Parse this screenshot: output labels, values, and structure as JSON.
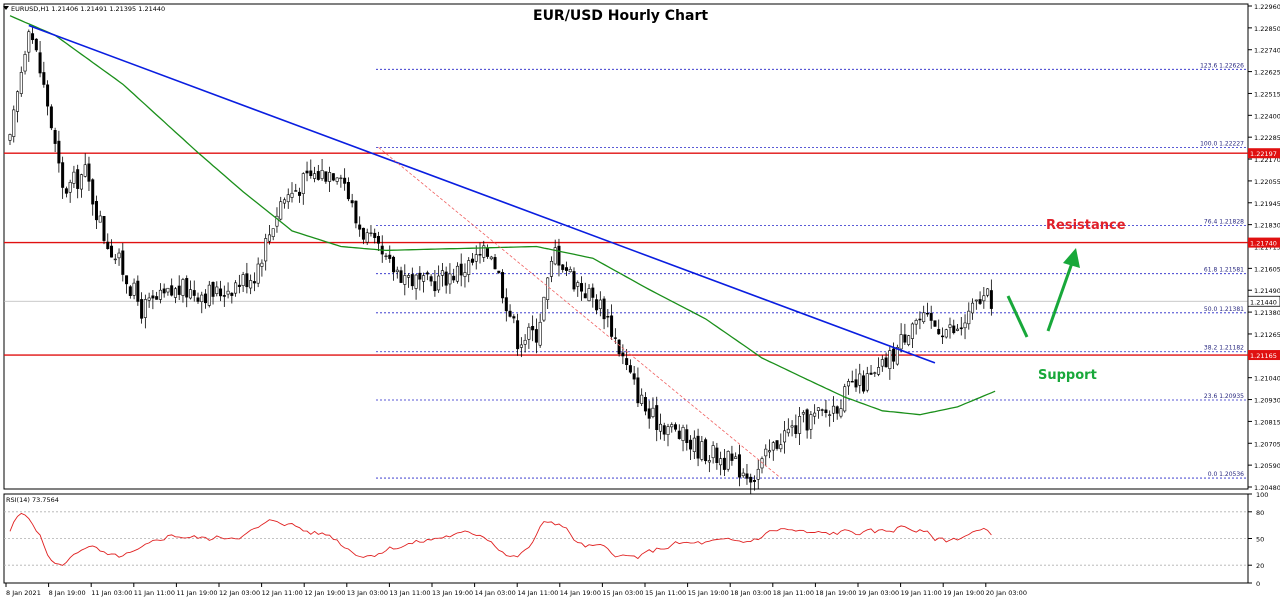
{
  "title": "EUR/USD Hourly Chart",
  "info": {
    "symbol_line": "EURUSD,H1  1.21406 1.21491 1.21395 1.21440",
    "rsi_line": "RSI(14) 73.7564"
  },
  "annotations": {
    "resistance": "Resistance",
    "support": "Support"
  },
  "colors": {
    "candle_bull_fill": "#ffffff",
    "candle_outline": "#000000",
    "moving_average": "#1a8f1a",
    "trendline": "#0a1ee0",
    "horizontal_lines": "#e01010",
    "fib_lines": "#2323c8",
    "fib_diagonal": "#f06060",
    "arrows": "#18a83a",
    "resistance_text": "#e0202a",
    "support_text": "#18a83a",
    "rsi_line": "#e02020",
    "rsi_levels": "#b0b0b0"
  },
  "price_axis_labels": [
    "1.22960",
    "1.22850",
    "1.22740",
    "1.22625",
    "1.22515",
    "1.22400",
    "1.22285",
    "1.22170",
    "1.22055",
    "1.21945",
    "1.21830",
    "1.21715",
    "1.21605",
    "1.21490",
    "1.21380",
    "1.21265",
    "1.21150",
    "1.21040",
    "1.20930",
    "1.20815",
    "1.20705",
    "1.20590",
    "1.20480"
  ],
  "price_tags": {
    "resistance_1": "1.22197",
    "resistance_2": "1.21740",
    "current": "1.21440",
    "support": "1.21165"
  },
  "fib_levels": [
    {
      "label": "123.6 1.22626",
      "price": 1.22626
    },
    {
      "label": "100.0 1.22227",
      "price": 1.22227
    },
    {
      "label": "76.4 1.21828",
      "price": 1.21828
    },
    {
      "label": "61.8 1.21581",
      "price": 1.21581
    },
    {
      "label": "50.0 1.21381",
      "price": 1.21381
    },
    {
      "label": "38.2 1.21182",
      "price": 1.21182
    },
    {
      "label": "23.6 1.20935",
      "price": 1.20935
    },
    {
      "label": "0.0 1.20536",
      "price": 1.20536
    }
  ],
  "rsi_axis_labels": [
    "100",
    "80",
    "50",
    "20",
    "0"
  ],
  "time_axis_labels": [
    "8 Jan 2021",
    "8 Jan 19:00",
    "11 Jan 03:00",
    "11 Jan 11:00",
    "11 Jan 19:00",
    "12 Jan 03:00",
    "12 Jan 11:00",
    "12 Jan 19:00",
    "13 Jan 03:00",
    "13 Jan 11:00",
    "13 Jan 19:00",
    "14 Jan 03:00",
    "14 Jan 11:00",
    "14 Jan 19:00",
    "15 Jan 03:00",
    "15 Jan 11:00",
    "15 Jan 19:00",
    "18 Jan 03:00",
    "18 Jan 11:00",
    "18 Jan 19:00",
    "19 Jan 03:00",
    "19 Jan 11:00",
    "19 Jan 19:00",
    "20 Jan 03:00"
  ],
  "chart_data": {
    "type": "candlestick",
    "title": "EUR/USD Hourly Chart",
    "y_range": [
      1.2048,
      1.2296
    ],
    "horizontal_levels": [
      1.22197,
      1.2174,
      1.21165
    ],
    "last_price": 1.2144,
    "rsi": {
      "label": "RSI(14)",
      "last_value": 73.7564,
      "levels": [
        80,
        50,
        20
      ],
      "range": [
        0,
        100
      ]
    },
    "close_path_keypoints": [
      [
        0,
        1.2225
      ],
      [
        5,
        1.2287
      ],
      [
        10,
        1.2245
      ],
      [
        14,
        1.22
      ],
      [
        20,
        1.221
      ],
      [
        25,
        1.2178
      ],
      [
        30,
        1.216
      ],
      [
        35,
        1.214
      ],
      [
        45,
        1.215
      ],
      [
        55,
        1.2148
      ],
      [
        65,
        1.2158
      ],
      [
        72,
        1.2195
      ],
      [
        80,
        1.2208
      ],
      [
        88,
        1.2212
      ],
      [
        92,
        1.2185
      ],
      [
        100,
        1.2163
      ],
      [
        110,
        1.2152
      ],
      [
        120,
        1.216
      ],
      [
        128,
        1.217
      ],
      [
        135,
        1.2125
      ],
      [
        140,
        1.2128
      ],
      [
        145,
        1.217
      ],
      [
        150,
        1.2155
      ],
      [
        158,
        1.214
      ],
      [
        165,
        1.2105
      ],
      [
        170,
        1.2085
      ],
      [
        175,
        1.208
      ],
      [
        182,
        1.207
      ],
      [
        190,
        1.2063
      ],
      [
        198,
        1.2055
      ],
      [
        205,
        1.2075
      ],
      [
        212,
        1.2083
      ],
      [
        218,
        1.2088
      ],
      [
        224,
        1.21
      ],
      [
        230,
        1.2105
      ],
      [
        236,
        1.212
      ],
      [
        240,
        1.2135
      ],
      [
        246,
        1.2132
      ],
      [
        252,
        1.2128
      ],
      [
        258,
        1.2145
      ]
    ],
    "moving_average_keypoints": [
      [
        0,
        1.229
      ],
      [
        12,
        1.228
      ],
      [
        30,
        1.2255
      ],
      [
        50,
        1.222
      ],
      [
        62,
        1.22
      ],
      [
        75,
        1.218
      ],
      [
        88,
        1.2172
      ],
      [
        100,
        1.217
      ],
      [
        120,
        1.2171
      ],
      [
        140,
        1.2172
      ],
      [
        155,
        1.2166
      ],
      [
        170,
        1.215
      ],
      [
        185,
        1.2135
      ],
      [
        200,
        1.2115
      ],
      [
        212,
        1.2104
      ],
      [
        222,
        1.2095
      ],
      [
        232,
        1.2088
      ],
      [
        242,
        1.2086
      ],
      [
        252,
        1.209
      ],
      [
        262,
        1.2098
      ]
    ],
    "trendline": {
      "from": [
        5,
        1.2285
      ],
      "to": [
        246,
        1.21125
      ]
    },
    "fib_diagonal": {
      "from": [
        98,
        1.22227
      ],
      "to": [
        205,
        1.20536
      ]
    }
  }
}
